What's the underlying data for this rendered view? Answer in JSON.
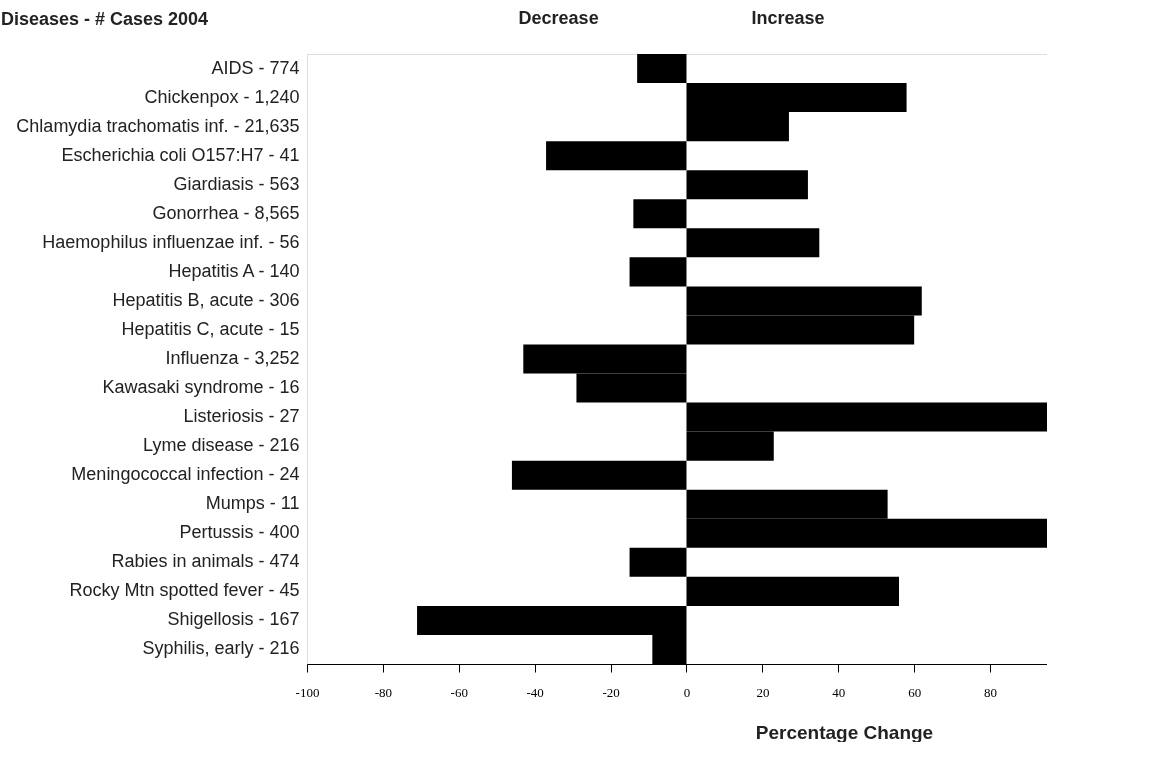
{
  "chart_data": {
    "type": "bar",
    "orientation": "horizontal",
    "ylabel": "Diseases - # Cases 2004",
    "xlabel": "Percentage Change",
    "annotations": [
      "Decrease",
      "Increase"
    ],
    "categories": [
      "AIDS - 774",
      "Chickenpox - 1,240",
      "Chlamydia trachomatis inf. - 21,635",
      "Escherichia coli O157:H7 - 41",
      "Giardiasis - 563",
      "Gonorrhea - 8,565",
      "Haemophilus influenzae inf. - 56",
      "Hepatitis A  - 140",
      "Hepatitis B, acute - 306",
      "Hepatitis C, acute  - 15",
      "Influenza - 3,252",
      "Kawasaki syndrome - 16",
      "Listeriosis - 27",
      "Lyme disease - 216",
      "Meningococcal infection - 24",
      "Mumps - 11",
      "Pertussis - 400",
      "Rabies in animals - 474",
      "Rocky Mtn spotted fever - 45",
      "Shigellosis - 167",
      "Syphilis, early - 216"
    ],
    "values": [
      -13,
      58,
      27,
      -37,
      32,
      -14,
      35,
      -15,
      62,
      60,
      -43,
      -29,
      95,
      23,
      -46,
      53,
      95,
      -15,
      56,
      -71,
      -9
    ],
    "color": "#000000",
    "xlim": [
      -100,
      95
    ],
    "xticks": [
      -100,
      -80,
      -60,
      -40,
      -20,
      0,
      20,
      40,
      60,
      80
    ],
    "grid": false
  }
}
